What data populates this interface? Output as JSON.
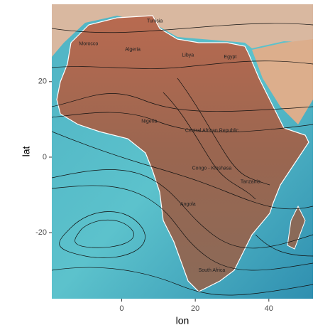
{
  "chart_data": {
    "type": "map",
    "x_label": "lon",
    "y_label": "lat",
    "xlim": [
      -19,
      52
    ],
    "ylim": [
      -37.5,
      40.5
    ],
    "xticks": [
      0,
      20,
      40
    ],
    "yticks": [
      -20,
      0,
      20
    ],
    "labels": [
      {
        "text": "Tunisia",
        "lon": 9,
        "lat": 36
      },
      {
        "text": "Morocco",
        "lon": -9,
        "lat": 30
      },
      {
        "text": "Algeria",
        "lon": 3,
        "lat": 28.5
      },
      {
        "text": "Libya",
        "lon": 18,
        "lat": 27
      },
      {
        "text": "Egypt",
        "lon": 29.5,
        "lat": 26.5
      },
      {
        "text": "Nigeria",
        "lon": 7.5,
        "lat": 9.5
      },
      {
        "text": "Central African Republic",
        "lon": 24.5,
        "lat": 7
      },
      {
        "text": "Congo - Kinshasa",
        "lon": 24.5,
        "lat": -3
      },
      {
        "text": "Tanzania",
        "lon": 35,
        "lat": -6.5
      },
      {
        "text": "Angola",
        "lon": 18,
        "lat": -12.5
      },
      {
        "text": "South Africa",
        "lon": 24.5,
        "lat": -30
      }
    ]
  }
}
